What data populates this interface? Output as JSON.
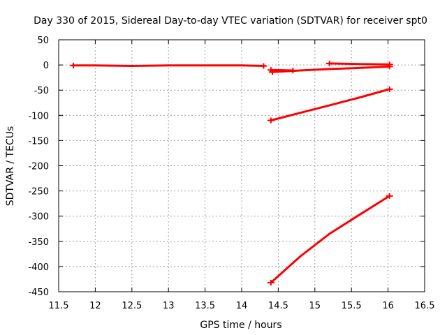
{
  "chart_data": {
    "type": "scatter",
    "title": "Day 330 of 2015, Sidereal Day-to-day VTEC variation (SDTVAR) for receiver spt0",
    "xlabel": "GPS time / hours",
    "ylabel": "SDTVAR / TECUs",
    "xlim": [
      11.5,
      16.5
    ],
    "ylim": [
      -450,
      50
    ],
    "xticks": [
      "11.5",
      "12",
      "12.5",
      "13",
      "13.5",
      "14",
      "14.5",
      "15",
      "15.5",
      "16",
      "16.5"
    ],
    "yticks": [
      "50",
      "0",
      "-50",
      "-100",
      "-150",
      "-200",
      "-250",
      "-300",
      "-350",
      "-400",
      "-450"
    ],
    "grid": true,
    "legend": "none",
    "color": "#ff0000",
    "series": [
      {
        "x": [
          11.7,
          12.0,
          12.5,
          13.0,
          13.5,
          14.0,
          14.3
        ],
        "y": [
          -1,
          -1,
          -2,
          -1,
          -1,
          -1,
          -2
        ]
      },
      {
        "x": [
          14.42,
          14.8,
          15.2,
          15.6,
          16.02
        ],
        "y": [
          -14,
          -11,
          -8,
          -6,
          -3
        ]
      },
      {
        "x": [
          14.4,
          14.7
        ],
        "y": [
          -10,
          -11
        ]
      },
      {
        "x": [
          15.2,
          15.6,
          16.02
        ],
        "y": [
          3,
          2,
          1
        ]
      },
      {
        "x": [
          14.4,
          14.8,
          15.2,
          15.6,
          16.02
        ],
        "y": [
          -110,
          -95,
          -80,
          -65,
          -48
        ]
      },
      {
        "x": [
          14.4,
          14.8,
          15.2,
          15.6,
          16.02
        ],
        "y": [
          -432,
          -380,
          -335,
          -298,
          -260
        ]
      }
    ]
  }
}
